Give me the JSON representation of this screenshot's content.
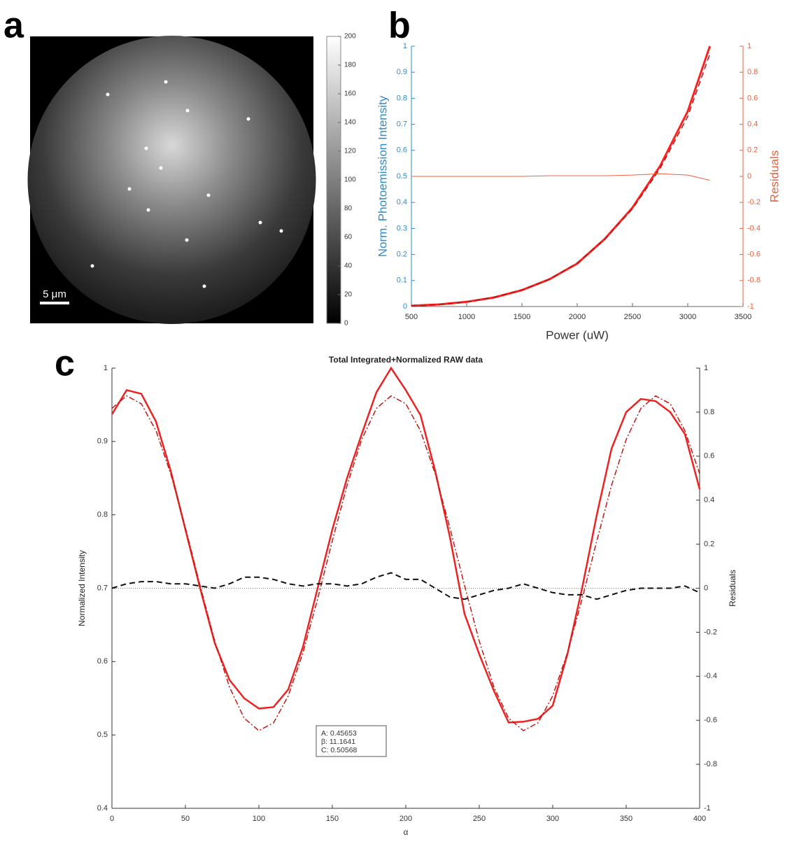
{
  "chart_data": [
    {
      "type": "image",
      "panel_label": "a",
      "scale_bar_label": "5 μm",
      "clim": [
        0,
        200
      ],
      "cticks": [
        0,
        20,
        40,
        60,
        80,
        100,
        120,
        140,
        160,
        180,
        200
      ]
    },
    {
      "type": "line",
      "panel_label": "b",
      "xlabel": "Power (uW)",
      "ylabel": "Norm. Photoemission Intensity",
      "y2label": "Residuals",
      "ylabel_color": "#2e8bc9",
      "y2label_color": "#e8603c",
      "xlim": [
        500,
        3500
      ],
      "xticks": [
        500,
        1000,
        1500,
        2000,
        2500,
        3000,
        3500
      ],
      "ylim": [
        0,
        1
      ],
      "yticks": [
        0,
        0.1,
        0.2,
        0.3,
        0.4,
        0.5,
        0.6,
        0.7,
        0.8,
        0.9,
        1
      ],
      "y2lim": [
        -1,
        1
      ],
      "y2ticks": [
        -1,
        -0.8,
        -0.6,
        -0.4,
        -0.2,
        0,
        0.2,
        0.4,
        0.6,
        0.8,
        1
      ],
      "x": [
        500,
        750,
        1000,
        1250,
        1500,
        1750,
        2000,
        2250,
        2500,
        2750,
        3000,
        3200
      ],
      "series": [
        {
          "color": "#ff2020",
          "line_style": "solid",
          "line_width": 3,
          "values": [
            0.003,
            0.008,
            0.018,
            0.035,
            0.063,
            0.105,
            0.165,
            0.26,
            0.38,
            0.54,
            0.75,
            1.0
          ]
        },
        {
          "color": "#b01818",
          "line_style": "dashed",
          "line_width": 1.5,
          "values": [
            0.002,
            0.007,
            0.018,
            0.036,
            0.064,
            0.104,
            0.168,
            0.258,
            0.375,
            0.53,
            0.73,
            0.97
          ]
        },
        {
          "color": "#f06040",
          "line_style": "solid",
          "line_width": 1,
          "axis": "y2",
          "values": [
            0,
            0,
            0,
            0,
            0,
            0.005,
            0.005,
            0.005,
            0.01,
            0.02,
            0.01,
            -0.03
          ]
        }
      ]
    },
    {
      "type": "line",
      "panel_label": "c",
      "title": "Total Integrated+Normalized RAW data",
      "xlabel": "α",
      "ylabel": "Normalized Intensity",
      "y2label": "Residuals",
      "ylabel_color": "#222222",
      "y2label_color": "#222222",
      "xlim": [
        0,
        400
      ],
      "xticks": [
        0,
        50,
        100,
        150,
        200,
        250,
        300,
        350,
        400
      ],
      "ylim": [
        0.4,
        1
      ],
      "yticks": [
        0.4,
        0.5,
        0.6,
        0.7,
        0.8,
        0.9,
        1
      ],
      "y2lim": [
        -1,
        1
      ],
      "y2ticks": [
        -1,
        -0.8,
        -0.6,
        -0.4,
        -0.2,
        0,
        0.2,
        0.4,
        0.6,
        0.8,
        1
      ],
      "x": [
        0,
        10,
        20,
        30,
        40,
        50,
        60,
        70,
        80,
        90,
        100,
        110,
        120,
        130,
        140,
        150,
        160,
        170,
        180,
        190,
        200,
        210,
        220,
        230,
        240,
        250,
        260,
        270,
        280,
        290,
        300,
        310,
        320,
        330,
        340,
        350,
        360,
        370,
        380,
        390,
        400
      ],
      "series": [
        {
          "color": "#ee2222",
          "line_style": "solid",
          "line_width": 2.5,
          "values": [
            0.937,
            0.97,
            0.965,
            0.927,
            0.86,
            0.78,
            0.7,
            0.625,
            0.575,
            0.55,
            0.536,
            0.538,
            0.562,
            0.62,
            0.7,
            0.78,
            0.85,
            0.91,
            0.967,
            1.0,
            0.97,
            0.936,
            0.86,
            0.77,
            0.665,
            0.61,
            0.56,
            0.517,
            0.518,
            0.522,
            0.54,
            0.61,
            0.7,
            0.8,
            0.89,
            0.94,
            0.958,
            0.955,
            0.94,
            0.91,
            0.835
          ]
        },
        {
          "color": "#c01818",
          "line_style": "dashdot",
          "line_width": 1.5,
          "values": [
            0.9451,
            0.9622,
            0.9514,
            0.9146,
            0.856,
            0.7826,
            0.7036,
            0.6278,
            0.5652,
            0.5228,
            0.5059,
            0.5165,
            0.5533,
            0.6119,
            0.6853,
            0.7645,
            0.84,
            0.9027,
            0.9451,
            0.9622,
            0.9514,
            0.9146,
            0.856,
            0.7826,
            0.7036,
            0.6278,
            0.5652,
            0.5228,
            0.5059,
            0.5165,
            0.5533,
            0.6119,
            0.6853,
            0.7645,
            0.84,
            0.9027,
            0.9451,
            0.9622,
            0.9514,
            0.9146,
            0.856
          ]
        },
        {
          "color": "#111111",
          "line_style": "dashed",
          "line_width": 2,
          "axis": "y2",
          "values": [
            0,
            0.02,
            0.03,
            0.03,
            0.02,
            0.02,
            0.01,
            0,
            0.02,
            0.05,
            0.05,
            0.04,
            0.02,
            0.01,
            0.02,
            0.02,
            0.01,
            0.02,
            0.05,
            0.07,
            0.04,
            0.04,
            0,
            -0.04,
            -0.05,
            -0.03,
            -0.01,
            0,
            0.02,
            0,
            -0.02,
            -0.03,
            -0.03,
            -0.05,
            -0.03,
            -0.01,
            0,
            0,
            0,
            0.01,
            -0.02
          ]
        }
      ],
      "hline": {
        "value": 0,
        "axis": "y2"
      },
      "annotation": [
        "A: 0.45653",
        "β: 11.1641",
        "C: 0.50568"
      ]
    }
  ]
}
